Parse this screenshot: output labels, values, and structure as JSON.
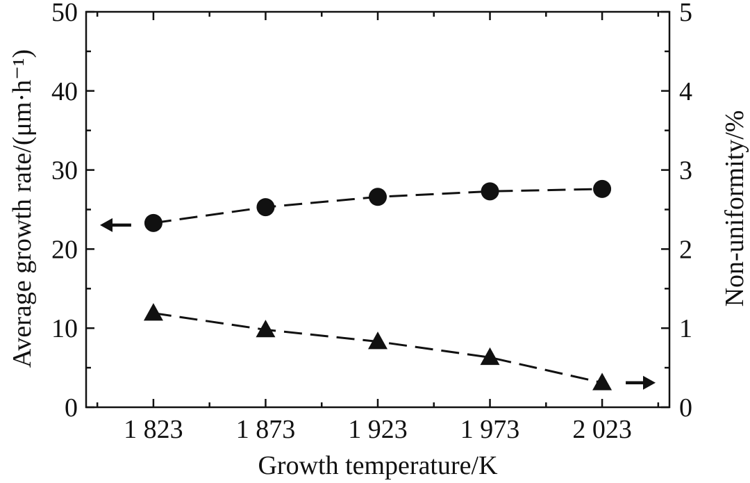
{
  "chart_data": {
    "type": "line",
    "title": "",
    "xlabel": "Growth temperature/K",
    "ylabel_left": "Average growth rate/(μm·h⁻¹)",
    "ylabel_right": "Non-uniformity/%",
    "x_tick_labels": [
      "1 823",
      "1 873",
      "1 923",
      "1 973",
      "2 023"
    ],
    "x": [
      1823,
      1873,
      1923,
      1973,
      2023
    ],
    "xlim": [
      1793,
      2053
    ],
    "y_left_ticks": [
      "0",
      "10",
      "20",
      "30",
      "40",
      "50"
    ],
    "y_left_lim": [
      0,
      50
    ],
    "y_right_ticks": [
      "0",
      "1",
      "2",
      "3",
      "4",
      "5"
    ],
    "y_right_lim": [
      0,
      5
    ],
    "grid": false,
    "series": [
      {
        "axis": "left",
        "marker": "circle",
        "line_style": "dashed",
        "color": "#111111",
        "values": [
          23.3,
          25.3,
          26.6,
          27.3,
          27.6
        ],
        "axis_indicator": "left-arrow"
      },
      {
        "axis": "right",
        "marker": "triangle",
        "line_style": "dashed",
        "color": "#111111",
        "values": [
          1.19,
          0.98,
          0.83,
          0.63,
          0.31
        ],
        "axis_indicator": "right-arrow"
      }
    ]
  }
}
